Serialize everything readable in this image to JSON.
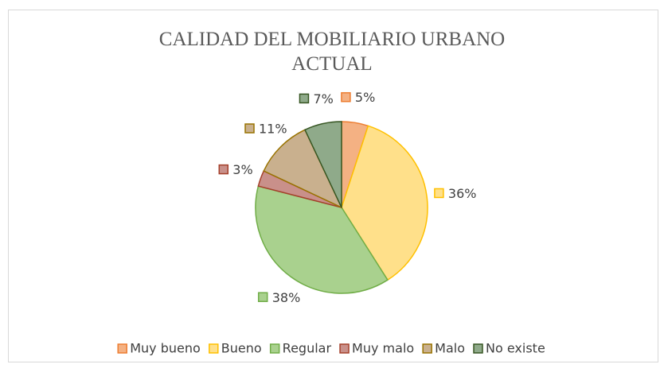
{
  "chart_data": {
    "type": "pie",
    "title": "CALIDAD DEL MOBILIARIO URBANO ACTUAL",
    "categories": [
      "Muy bueno",
      "Bueno",
      "Regular",
      "Muy malo",
      "Malo",
      "No existe"
    ],
    "values": [
      5,
      36,
      38,
      3,
      11,
      7
    ],
    "value_labels": [
      "5%",
      "36%",
      "38%",
      "3%",
      "11%",
      "7%"
    ],
    "colors": [
      "#f4b183",
      "#ffe08a",
      "#a9d18e",
      "#c9908a",
      "#c9b08e",
      "#8faa8a"
    ],
    "edge_colors": [
      "#ed7d31",
      "#ffc000",
      "#70ad47",
      "#a5402b",
      "#997300",
      "#375623"
    ],
    "legend": "bottom"
  }
}
